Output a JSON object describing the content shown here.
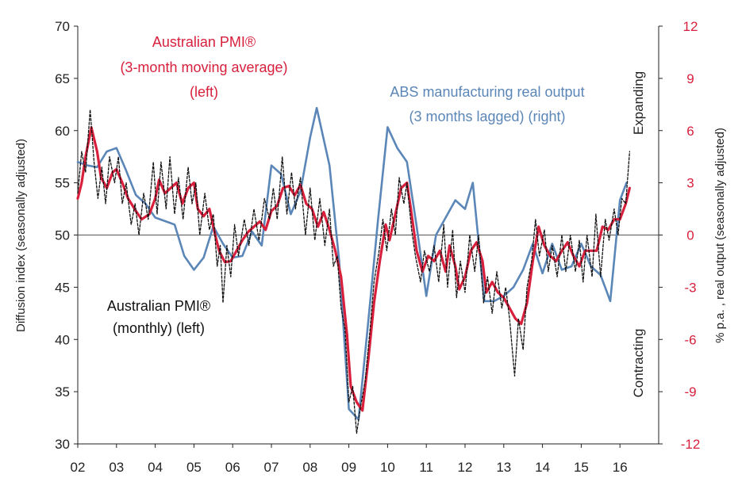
{
  "chart_data": {
    "type": "line",
    "colors": {
      "pmi_avg": "#d81f3c",
      "pmi_monthly": "#111111",
      "abs": "#5b86b8",
      "right_ticks": "#d81f3c",
      "axis": "#222222"
    },
    "y_left": {
      "label": "Diffusion index (seasonally adjusted)",
      "range": [
        30,
        70
      ],
      "ticks": [
        "30",
        "35",
        "40",
        "45",
        "50",
        "55",
        "60",
        "65",
        "70"
      ]
    },
    "y_right": {
      "label": "% p.a. , real output (seasonally adjusted)",
      "range": [
        -12,
        12
      ],
      "ticks": [
        "-12",
        "-9",
        "-6",
        "-3",
        "0",
        "3",
        "6",
        "9",
        "12"
      ]
    },
    "x_axis": {
      "range": [
        2002,
        2017
      ],
      "ticks": [
        "02",
        "03",
        "04",
        "05",
        "06",
        "07",
        "08",
        "09",
        "10",
        "11",
        "12",
        "13",
        "14",
        "15",
        "16"
      ]
    },
    "annotations": {
      "pmi_avg": [
        "Australian PMI®",
        "(3-month moving average)",
        "(left)"
      ],
      "abs": [
        "ABS manufacturing real output",
        "(3 months lagged) (right)"
      ],
      "pmi_monthly": [
        "Australian PMI®",
        "(monthly) (left)"
      ],
      "expanding": "Expanding",
      "contracting": "Contracting"
    },
    "series": [
      {
        "key": "abs",
        "axis": "right",
        "points": [
          [
            2002.0,
            4.2
          ],
          [
            2002.25,
            4.0
          ],
          [
            2002.5,
            3.9
          ],
          [
            2002.75,
            4.8
          ],
          [
            2003.0,
            5.0
          ],
          [
            2003.25,
            3.7
          ],
          [
            2003.5,
            2.3
          ],
          [
            2003.75,
            1.8
          ],
          [
            2004.0,
            1.0
          ],
          [
            2004.25,
            0.8
          ],
          [
            2004.5,
            0.6
          ],
          [
            2004.75,
            -1.2
          ],
          [
            2005.0,
            -2.0
          ],
          [
            2005.25,
            -1.3
          ],
          [
            2005.5,
            0.5
          ],
          [
            2005.75,
            -0.5
          ],
          [
            2006.0,
            -1.3
          ],
          [
            2006.25,
            -1.2
          ],
          [
            2006.5,
            0.2
          ],
          [
            2006.75,
            -0.6
          ],
          [
            2007.0,
            4.0
          ],
          [
            2007.25,
            3.5
          ],
          [
            2007.5,
            1.2
          ],
          [
            2007.75,
            2.5
          ],
          [
            2008.0,
            5.6
          ],
          [
            2008.17,
            7.3
          ],
          [
            2008.5,
            4.0
          ],
          [
            2008.75,
            -1.5
          ],
          [
            2009.0,
            -10.0
          ],
          [
            2009.25,
            -10.6
          ],
          [
            2009.5,
            -5.0
          ],
          [
            2009.75,
            0.8
          ],
          [
            2010.0,
            6.2
          ],
          [
            2010.25,
            5.0
          ],
          [
            2010.5,
            4.2
          ],
          [
            2010.75,
            0.5
          ],
          [
            2011.0,
            -3.5
          ],
          [
            2011.25,
            0.0
          ],
          [
            2011.5,
            1.0
          ],
          [
            2011.75,
            2.0
          ],
          [
            2012.0,
            1.5
          ],
          [
            2012.2,
            3.0
          ],
          [
            2012.5,
            -3.8
          ],
          [
            2012.75,
            -3.8
          ],
          [
            2013.0,
            -3.5
          ],
          [
            2013.25,
            -3.0
          ],
          [
            2013.5,
            -2.0
          ],
          [
            2013.75,
            -0.5
          ],
          [
            2014.0,
            -2.2
          ],
          [
            2014.25,
            -0.5
          ],
          [
            2014.5,
            -2.0
          ],
          [
            2014.75,
            -1.8
          ],
          [
            2015.0,
            -0.5
          ],
          [
            2015.25,
            -1.8
          ],
          [
            2015.5,
            -2.3
          ],
          [
            2015.75,
            -3.8
          ],
          [
            2016.0,
            2.0
          ],
          [
            2016.17,
            3.0
          ]
        ]
      },
      {
        "key": "pmi_avg",
        "axis": "left",
        "points": [
          [
            2002.0,
            53.5
          ],
          [
            2002.1,
            55.0
          ],
          [
            2002.2,
            57.5
          ],
          [
            2002.35,
            60.3
          ],
          [
            2002.5,
            58.0
          ],
          [
            2002.6,
            55.5
          ],
          [
            2002.75,
            54.5
          ],
          [
            2002.9,
            56.0
          ],
          [
            2003.0,
            56.3
          ],
          [
            2003.15,
            55.0
          ],
          [
            2003.3,
            53.5
          ],
          [
            2003.5,
            52.3
          ],
          [
            2003.65,
            51.5
          ],
          [
            2003.85,
            52.0
          ],
          [
            2004.0,
            53.5
          ],
          [
            2004.1,
            55.3
          ],
          [
            2004.25,
            54.0
          ],
          [
            2004.4,
            54.5
          ],
          [
            2004.55,
            55.0
          ],
          [
            2004.7,
            53.0
          ],
          [
            2004.85,
            54.5
          ],
          [
            2005.0,
            55.0
          ],
          [
            2005.1,
            52.5
          ],
          [
            2005.25,
            51.8
          ],
          [
            2005.4,
            52.5
          ],
          [
            2005.55,
            50.0
          ],
          [
            2005.65,
            48.5
          ],
          [
            2005.8,
            47.4
          ],
          [
            2005.95,
            47.5
          ],
          [
            2006.1,
            48.5
          ],
          [
            2006.25,
            49.5
          ],
          [
            2006.4,
            50.3
          ],
          [
            2006.55,
            50.8
          ],
          [
            2006.7,
            51.3
          ],
          [
            2006.85,
            50.5
          ],
          [
            2007.0,
            52.3
          ],
          [
            2007.15,
            52.8
          ],
          [
            2007.3,
            54.5
          ],
          [
            2007.45,
            54.7
          ],
          [
            2007.6,
            53.8
          ],
          [
            2007.75,
            54.8
          ],
          [
            2007.9,
            53.0
          ],
          [
            2008.05,
            52.5
          ],
          [
            2008.2,
            50.8
          ],
          [
            2008.35,
            52.2
          ],
          [
            2008.5,
            50.5
          ],
          [
            2008.65,
            48.5
          ],
          [
            2008.8,
            46.0
          ],
          [
            2008.95,
            40.5
          ],
          [
            2009.05,
            35.5
          ],
          [
            2009.2,
            34.0
          ],
          [
            2009.35,
            33.2
          ],
          [
            2009.5,
            38.0
          ],
          [
            2009.65,
            43.5
          ],
          [
            2009.8,
            47.5
          ],
          [
            2009.95,
            51.0
          ],
          [
            2010.05,
            49.5
          ],
          [
            2010.2,
            52.0
          ],
          [
            2010.35,
            54.5
          ],
          [
            2010.5,
            55.0
          ],
          [
            2010.6,
            52.5
          ],
          [
            2010.75,
            48.5
          ],
          [
            2010.9,
            46.5
          ],
          [
            2011.05,
            48.0
          ],
          [
            2011.2,
            47.5
          ],
          [
            2011.35,
            48.5
          ],
          [
            2011.5,
            46.5
          ],
          [
            2011.6,
            49.0
          ],
          [
            2011.75,
            47.0
          ],
          [
            2011.85,
            44.8
          ],
          [
            2012.0,
            46.0
          ],
          [
            2012.15,
            48.5
          ],
          [
            2012.3,
            49.3
          ],
          [
            2012.45,
            47.5
          ],
          [
            2012.55,
            44.5
          ],
          [
            2012.7,
            45.5
          ],
          [
            2012.85,
            44.5
          ],
          [
            2013.0,
            44.0
          ],
          [
            2013.15,
            43.0
          ],
          [
            2013.3,
            42.0
          ],
          [
            2013.45,
            41.5
          ],
          [
            2013.6,
            43.5
          ],
          [
            2013.75,
            47.5
          ],
          [
            2013.9,
            50.8
          ],
          [
            2014.05,
            49.0
          ],
          [
            2014.2,
            48.0
          ],
          [
            2014.35,
            47.5
          ],
          [
            2014.5,
            48.5
          ],
          [
            2014.65,
            49.3
          ],
          [
            2014.8,
            48.0
          ],
          [
            2014.95,
            47.0
          ],
          [
            2015.1,
            48.5
          ],
          [
            2015.25,
            48.5
          ],
          [
            2015.4,
            48.5
          ],
          [
            2015.55,
            50.8
          ],
          [
            2015.7,
            50.5
          ],
          [
            2015.85,
            51.5
          ],
          [
            2016.0,
            51.5
          ],
          [
            2016.15,
            53.0
          ],
          [
            2016.25,
            54.5
          ]
        ]
      },
      {
        "key": "pmi_monthly",
        "axis": "left",
        "points": [
          [
            2002.0,
            54.0
          ],
          [
            2002.1,
            58.0
          ],
          [
            2002.2,
            56.0
          ],
          [
            2002.32,
            62.0
          ],
          [
            2002.42,
            57.0
          ],
          [
            2002.52,
            53.5
          ],
          [
            2002.62,
            56.5
          ],
          [
            2002.72,
            53.0
          ],
          [
            2002.82,
            57.5
          ],
          [
            2002.95,
            55.0
          ],
          [
            2003.05,
            57.5
          ],
          [
            2003.15,
            53.0
          ],
          [
            2003.25,
            55.0
          ],
          [
            2003.38,
            51.0
          ],
          [
            2003.48,
            53.0
          ],
          [
            2003.58,
            50.0
          ],
          [
            2003.7,
            54.0
          ],
          [
            2003.82,
            51.5
          ],
          [
            2003.95,
            57.0
          ],
          [
            2004.05,
            52.0
          ],
          [
            2004.15,
            57.0
          ],
          [
            2004.28,
            52.5
          ],
          [
            2004.38,
            57.5
          ],
          [
            2004.5,
            52.0
          ],
          [
            2004.6,
            55.5
          ],
          [
            2004.72,
            51.5
          ],
          [
            2004.85,
            56.5
          ],
          [
            2004.95,
            53.0
          ],
          [
            2005.05,
            55.0
          ],
          [
            2005.15,
            50.0
          ],
          [
            2005.28,
            54.0
          ],
          [
            2005.4,
            50.5
          ],
          [
            2005.5,
            52.0
          ],
          [
            2005.6,
            47.0
          ],
          [
            2005.68,
            49.0
          ],
          [
            2005.75,
            43.5
          ],
          [
            2005.85,
            49.0
          ],
          [
            2005.95,
            46.0
          ],
          [
            2006.05,
            51.0
          ],
          [
            2006.15,
            48.0
          ],
          [
            2006.3,
            51.5
          ],
          [
            2006.42,
            49.0
          ],
          [
            2006.55,
            52.5
          ],
          [
            2006.68,
            49.5
          ],
          [
            2006.82,
            53.5
          ],
          [
            2006.95,
            51.5
          ],
          [
            2007.05,
            54.5
          ],
          [
            2007.15,
            51.5
          ],
          [
            2007.28,
            57.5
          ],
          [
            2007.4,
            52.0
          ],
          [
            2007.52,
            56.0
          ],
          [
            2007.62,
            52.5
          ],
          [
            2007.75,
            55.5
          ],
          [
            2007.88,
            50.0
          ],
          [
            2008.0,
            54.5
          ],
          [
            2008.12,
            49.5
          ],
          [
            2008.25,
            53.5
          ],
          [
            2008.38,
            49.0
          ],
          [
            2008.5,
            52.5
          ],
          [
            2008.6,
            47.0
          ],
          [
            2008.7,
            48.0
          ],
          [
            2008.8,
            43.0
          ],
          [
            2008.9,
            41.0
          ],
          [
            2009.0,
            34.0
          ],
          [
            2009.1,
            35.5
          ],
          [
            2009.2,
            31.0
          ],
          [
            2009.3,
            33.5
          ],
          [
            2009.42,
            36.0
          ],
          [
            2009.55,
            41.0
          ],
          [
            2009.65,
            45.5
          ],
          [
            2009.78,
            48.5
          ],
          [
            2009.88,
            51.5
          ],
          [
            2009.98,
            48.5
          ],
          [
            2010.1,
            52.5
          ],
          [
            2010.2,
            50.0
          ],
          [
            2010.3,
            55.5
          ],
          [
            2010.42,
            53.0
          ],
          [
            2010.5,
            55.0
          ],
          [
            2010.62,
            50.5
          ],
          [
            2010.72,
            48.0
          ],
          [
            2010.85,
            45.5
          ],
          [
            2010.95,
            48.5
          ],
          [
            2011.08,
            46.5
          ],
          [
            2011.2,
            49.0
          ],
          [
            2011.32,
            45.5
          ],
          [
            2011.45,
            51.0
          ],
          [
            2011.55,
            45.0
          ],
          [
            2011.68,
            50.5
          ],
          [
            2011.78,
            44.0
          ],
          [
            2011.88,
            47.5
          ],
          [
            2012.0,
            44.5
          ],
          [
            2012.12,
            50.0
          ],
          [
            2012.25,
            46.5
          ],
          [
            2012.35,
            50.0
          ],
          [
            2012.48,
            43.5
          ],
          [
            2012.58,
            46.0
          ],
          [
            2012.7,
            42.5
          ],
          [
            2012.82,
            46.5
          ],
          [
            2012.95,
            43.0
          ],
          [
            2013.05,
            45.0
          ],
          [
            2013.15,
            42.0
          ],
          [
            2013.28,
            36.5
          ],
          [
            2013.38,
            42.0
          ],
          [
            2013.5,
            39.0
          ],
          [
            2013.6,
            45.0
          ],
          [
            2013.72,
            47.5
          ],
          [
            2013.82,
            51.5
          ],
          [
            2013.92,
            48.0
          ],
          [
            2014.05,
            50.5
          ],
          [
            2014.15,
            46.5
          ],
          [
            2014.25,
            49.0
          ],
          [
            2014.38,
            46.0
          ],
          [
            2014.5,
            50.0
          ],
          [
            2014.6,
            46.5
          ],
          [
            2014.72,
            50.0
          ],
          [
            2014.85,
            46.5
          ],
          [
            2014.95,
            49.5
          ],
          [
            2015.05,
            45.5
          ],
          [
            2015.15,
            50.0
          ],
          [
            2015.28,
            46.0
          ],
          [
            2015.38,
            52.0
          ],
          [
            2015.5,
            46.0
          ],
          [
            2015.62,
            51.5
          ],
          [
            2015.72,
            49.5
          ],
          [
            2015.85,
            52.5
          ],
          [
            2015.95,
            50.0
          ],
          [
            2016.05,
            53.5
          ],
          [
            2016.15,
            53.0
          ],
          [
            2016.25,
            58.0
          ]
        ]
      }
    ]
  }
}
